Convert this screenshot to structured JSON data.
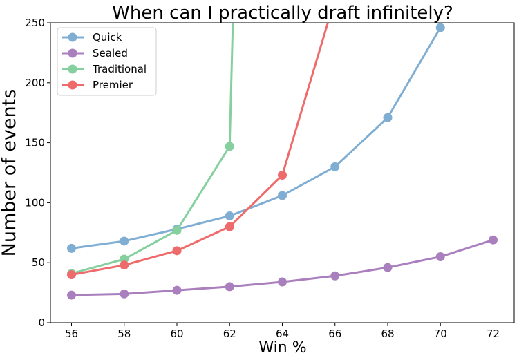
{
  "chart_data": {
    "type": "line",
    "title": "When can I practically draft infinitely?",
    "xlabel": "Win %",
    "ylabel": "Number of events",
    "xlim": [
      55.2,
      72.8
    ],
    "ylim": [
      0,
      250
    ],
    "xticks": [
      56,
      58,
      60,
      62,
      64,
      66,
      68,
      70,
      72
    ],
    "yticks": [
      0,
      50,
      100,
      150,
      200,
      250
    ],
    "grid": false,
    "legend_position": "top-left",
    "series": [
      {
        "name": "Quick",
        "color": "#80aed3",
        "points": [
          [
            56,
            62
          ],
          [
            58,
            68
          ],
          [
            60,
            78
          ],
          [
            62,
            89
          ],
          [
            64,
            106
          ],
          [
            66,
            130
          ],
          [
            68,
            171
          ],
          [
            70,
            246
          ],
          [
            70.2,
            300
          ]
        ]
      },
      {
        "name": "Sealed",
        "color": "#a97fbd",
        "points": [
          [
            56,
            23
          ],
          [
            58,
            24
          ],
          [
            60,
            27
          ],
          [
            62,
            30
          ],
          [
            64,
            34
          ],
          [
            66,
            39
          ],
          [
            68,
            46
          ],
          [
            70,
            55
          ],
          [
            72,
            69
          ]
        ]
      },
      {
        "name": "Traditional",
        "color": "#86d0a0",
        "points": [
          [
            56,
            41
          ],
          [
            58,
            53
          ],
          [
            60,
            77
          ],
          [
            62,
            147
          ],
          [
            62.3,
            400
          ]
        ]
      },
      {
        "name": "Premier",
        "color": "#ef6b6b",
        "points": [
          [
            56,
            40
          ],
          [
            58,
            48
          ],
          [
            60,
            60
          ],
          [
            62,
            80
          ],
          [
            64,
            123
          ],
          [
            66,
            270
          ]
        ]
      }
    ]
  }
}
